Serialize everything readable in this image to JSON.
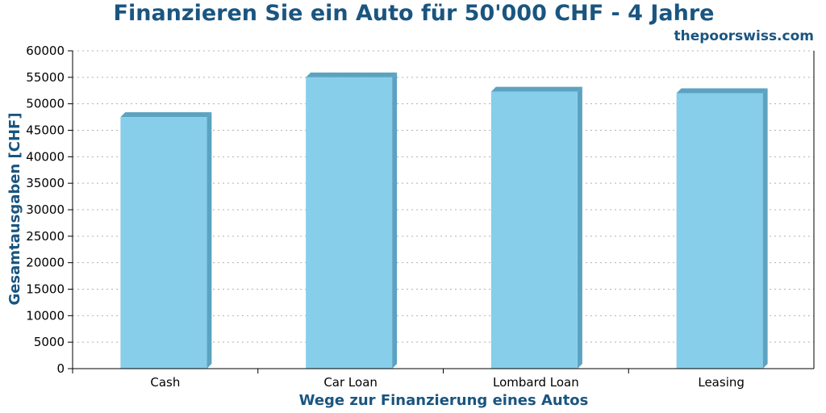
{
  "chart_data": {
    "type": "bar",
    "title": "Finanzieren Sie ein Auto für 50'000 CHF - 4 Jahre",
    "brand": "thepoorswiss.com",
    "xlabel": "Wege zur Finanzierung eines Autos",
    "ylabel": "Gesamtausgaben [CHF]",
    "categories": [
      "Cash",
      "Car Loan",
      "Lombard Loan",
      "Leasing"
    ],
    "values": [
      47500,
      55000,
      52300,
      52000
    ],
    "ylim": [
      0,
      60000
    ],
    "yticks": [
      0,
      5000,
      10000,
      15000,
      20000,
      25000,
      30000,
      35000,
      40000,
      45000,
      50000,
      55000,
      60000
    ],
    "grid": true,
    "colors": {
      "bar_front": "#87ceeb",
      "bar_side": "#5ba3c0",
      "text_accent": "#1a5580",
      "grid": "#b0b0b0"
    }
  }
}
